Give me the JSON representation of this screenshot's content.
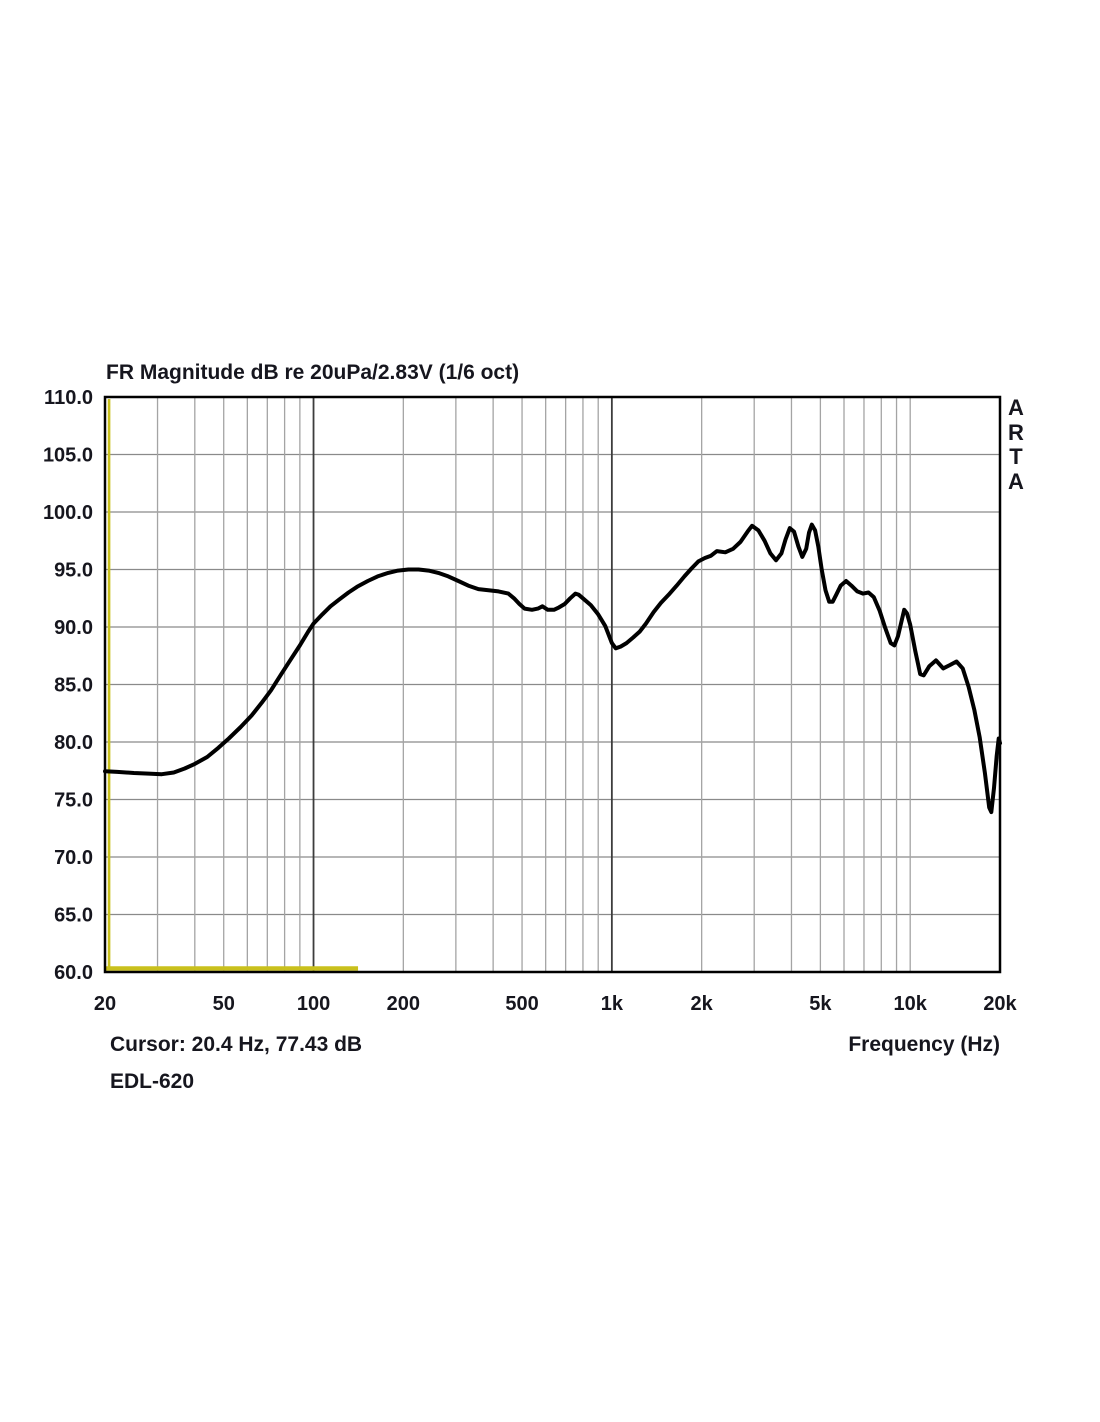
{
  "page": {
    "background": "#ffffff"
  },
  "chart": {
    "title": "FR Magnitude dB re 20uPa/2.83V (1/6 oct)",
    "watermark_vertical": "ARTA",
    "cursor_readout": "Cursor: 20.4 Hz, 77.43 dB",
    "device_label": "EDL-620",
    "x_axis_label": "Frequency (Hz)"
  },
  "chart_data": {
    "type": "line",
    "title": "FR Magnitude dB re 20uPa/2.83V (1/6 oct)",
    "xlabel": "Frequency (Hz)",
    "ylabel": "dB re 20uPa/2.83V",
    "x_scale": "log",
    "xlim": [
      20,
      20000
    ],
    "ylim": [
      60,
      110
    ],
    "grid": true,
    "legend_position": "none",
    "y_ticks": [
      {
        "value": 110,
        "label": "110.0"
      },
      {
        "value": 105,
        "label": "105.0"
      },
      {
        "value": 100,
        "label": "100.0"
      },
      {
        "value": 95,
        "label": "95.0"
      },
      {
        "value": 90,
        "label": "90.0"
      },
      {
        "value": 85,
        "label": "85.0"
      },
      {
        "value": 80,
        "label": "80.0"
      },
      {
        "value": 75,
        "label": "75.0"
      },
      {
        "value": 70,
        "label": "70.0"
      },
      {
        "value": 65,
        "label": "65.0"
      },
      {
        "value": 60,
        "label": "60.0"
      }
    ],
    "x_ticks": [
      {
        "value": 20,
        "label": "20"
      },
      {
        "value": 50,
        "label": "50"
      },
      {
        "value": 100,
        "label": "100"
      },
      {
        "value": 200,
        "label": "200"
      },
      {
        "value": 500,
        "label": "500"
      },
      {
        "value": 1000,
        "label": "1k"
      },
      {
        "value": 2000,
        "label": "2k"
      },
      {
        "value": 5000,
        "label": "5k"
      },
      {
        "value": 10000,
        "label": "10k"
      },
      {
        "value": 20000,
        "label": "20k"
      }
    ],
    "y_grid_values": [
      65,
      70,
      75,
      80,
      85,
      90,
      95,
      100,
      105
    ],
    "x_grid_minor": [
      30,
      40,
      50,
      60,
      70,
      80,
      90,
      200,
      300,
      400,
      500,
      600,
      700,
      800,
      900,
      2000,
      3000,
      4000,
      5000,
      6000,
      7000,
      8000,
      9000,
      10000
    ],
    "x_grid_major": [
      100,
      1000
    ],
    "colors": {
      "curve": "#000000",
      "text": "#16161e",
      "h_grid": "#8a8a8a",
      "v_grid_minor": "#a4a4a4",
      "v_grid_major": "#3d3d3d",
      "border": "#000000",
      "accent_yellow": "#c9c01c"
    },
    "cursor": {
      "freq_hz": 20.4,
      "db": 77.43
    },
    "marker_line": {
      "db": 60.3,
      "from_hz": 20,
      "to_hz": 141
    },
    "series": [
      {
        "name": "FR Magnitude (1/6 oct)",
        "color": "#000000",
        "points": [
          [
            20,
            77.45
          ],
          [
            22,
            77.4
          ],
          [
            25,
            77.3
          ],
          [
            28,
            77.25
          ],
          [
            31,
            77.2
          ],
          [
            34,
            77.35
          ],
          [
            37,
            77.7
          ],
          [
            40,
            78.1
          ],
          [
            44,
            78.7
          ],
          [
            48,
            79.5
          ],
          [
            52,
            80.3
          ],
          [
            57,
            81.3
          ],
          [
            62,
            82.3
          ],
          [
            67,
            83.4
          ],
          [
            72,
            84.5
          ],
          [
            78,
            85.9
          ],
          [
            84,
            87.2
          ],
          [
            90,
            88.4
          ],
          [
            96,
            89.6
          ],
          [
            100,
            90.3
          ],
          [
            107,
            91.1
          ],
          [
            114,
            91.8
          ],
          [
            122,
            92.4
          ],
          [
            131,
            93.0
          ],
          [
            140,
            93.5
          ],
          [
            152,
            94.0
          ],
          [
            164,
            94.4
          ],
          [
            178,
            94.7
          ],
          [
            192,
            94.9
          ],
          [
            208,
            95.0
          ],
          [
            225,
            95.0
          ],
          [
            243,
            94.9
          ],
          [
            262,
            94.7
          ],
          [
            283,
            94.4
          ],
          [
            306,
            94.0
          ],
          [
            330,
            93.6
          ],
          [
            357,
            93.3
          ],
          [
            386,
            93.2
          ],
          [
            417,
            93.1
          ],
          [
            450,
            92.9
          ],
          [
            470,
            92.5
          ],
          [
            490,
            92.0
          ],
          [
            510,
            91.6
          ],
          [
            540,
            91.5
          ],
          [
            565,
            91.6
          ],
          [
            585,
            91.8
          ],
          [
            610,
            91.5
          ],
          [
            640,
            91.5
          ],
          [
            665,
            91.7
          ],
          [
            695,
            92.0
          ],
          [
            725,
            92.5
          ],
          [
            755,
            92.9
          ],
          [
            775,
            92.8
          ],
          [
            800,
            92.5
          ],
          [
            850,
            91.9
          ],
          [
            900,
            91.1
          ],
          [
            950,
            90.1
          ],
          [
            1000,
            88.6
          ],
          [
            1030,
            88.15
          ],
          [
            1070,
            88.3
          ],
          [
            1120,
            88.6
          ],
          [
            1180,
            89.1
          ],
          [
            1240,
            89.6
          ],
          [
            1300,
            90.3
          ],
          [
            1380,
            91.3
          ],
          [
            1460,
            92.1
          ],
          [
            1550,
            92.8
          ],
          [
            1650,
            93.6
          ],
          [
            1750,
            94.4
          ],
          [
            1850,
            95.1
          ],
          [
            1950,
            95.7
          ],
          [
            2050,
            96.0
          ],
          [
            2150,
            96.2
          ],
          [
            2250,
            96.6
          ],
          [
            2400,
            96.5
          ],
          [
            2550,
            96.8
          ],
          [
            2700,
            97.4
          ],
          [
            2850,
            98.3
          ],
          [
            2950,
            98.8
          ],
          [
            3100,
            98.4
          ],
          [
            3250,
            97.5
          ],
          [
            3400,
            96.4
          ],
          [
            3550,
            95.8
          ],
          [
            3700,
            96.4
          ],
          [
            3820,
            97.6
          ],
          [
            3950,
            98.6
          ],
          [
            4080,
            98.3
          ],
          [
            4220,
            97.0
          ],
          [
            4350,
            96.1
          ],
          [
            4480,
            96.8
          ],
          [
            4580,
            98.2
          ],
          [
            4680,
            98.9
          ],
          [
            4800,
            98.4
          ],
          [
            4920,
            97.0
          ],
          [
            5050,
            95.0
          ],
          [
            5200,
            93.2
          ],
          [
            5350,
            92.2
          ],
          [
            5500,
            92.2
          ],
          [
            5650,
            92.8
          ],
          [
            5850,
            93.6
          ],
          [
            6100,
            94.0
          ],
          [
            6350,
            93.6
          ],
          [
            6650,
            93.1
          ],
          [
            6950,
            92.9
          ],
          [
            7250,
            93.0
          ],
          [
            7550,
            92.6
          ],
          [
            7900,
            91.4
          ],
          [
            8250,
            89.9
          ],
          [
            8600,
            88.6
          ],
          [
            8850,
            88.4
          ],
          [
            9100,
            89.2
          ],
          [
            9350,
            90.5
          ],
          [
            9550,
            91.5
          ],
          [
            9750,
            91.2
          ],
          [
            10000,
            90.2
          ],
          [
            10400,
            87.9
          ],
          [
            10800,
            85.9
          ],
          [
            11100,
            85.8
          ],
          [
            11600,
            86.6
          ],
          [
            12200,
            87.1
          ],
          [
            12900,
            86.4
          ],
          [
            13600,
            86.7
          ],
          [
            14300,
            87.0
          ],
          [
            15000,
            86.4
          ],
          [
            15700,
            84.8
          ],
          [
            16400,
            82.8
          ],
          [
            17100,
            80.4
          ],
          [
            17800,
            77.3
          ],
          [
            18400,
            74.3
          ],
          [
            18700,
            73.9
          ],
          [
            19100,
            76.0
          ],
          [
            19500,
            78.8
          ],
          [
            19800,
            80.3
          ],
          [
            20000,
            79.9
          ]
        ]
      }
    ]
  }
}
